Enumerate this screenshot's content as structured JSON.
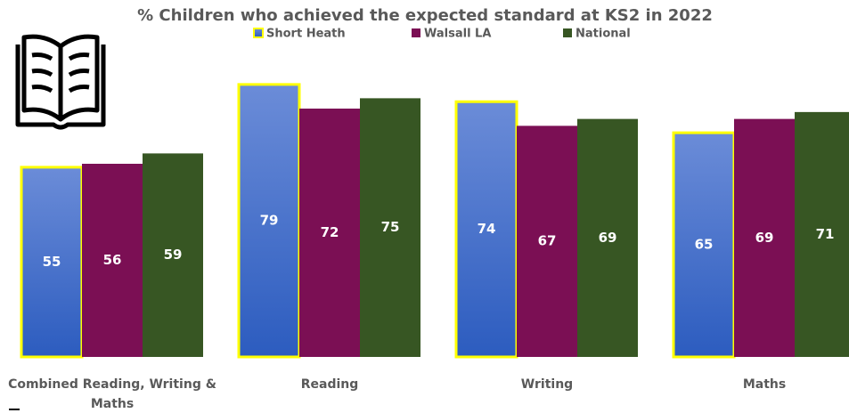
{
  "chart_data": {
    "type": "bar",
    "title": "% Children who achieved the expected standard at KS2 in 2022",
    "categories": [
      "Combined Reading, Writing & Maths",
      "Reading",
      "Writing",
      "Maths"
    ],
    "series": [
      {
        "name": "Short Heath",
        "color": "#4472c4",
        "values": [
          55,
          79,
          74,
          65
        ]
      },
      {
        "name": "Walsall LA",
        "color": "#7b0f54",
        "values": [
          56,
          72,
          67,
          69
        ]
      },
      {
        "name": "National",
        "color": "#375623",
        "values": [
          59,
          75,
          69,
          71
        ]
      }
    ],
    "ylim": [
      0,
      80
    ]
  }
}
